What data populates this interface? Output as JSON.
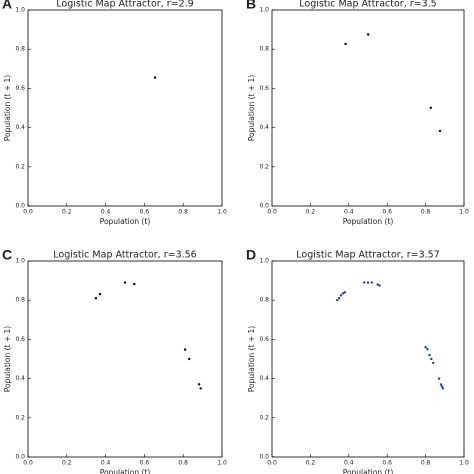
{
  "chart_data": [
    {
      "type": "scatter",
      "panel": "A",
      "title": "Logistic Map Attractor, r=2.9",
      "xlabel": "Population (t)",
      "ylabel": "Population (t + 1)",
      "x": [
        0.655
      ],
      "y": [
        0.655
      ],
      "color": "#000000",
      "xlim": [
        0,
        1
      ],
      "ylim": [
        0,
        1
      ],
      "xticks": [
        {
          "value": 0,
          "label": "0.0"
        },
        {
          "value": 0.2,
          "label": "0.2"
        },
        {
          "value": 0.4,
          "label": "0.4"
        },
        {
          "value": 0.6,
          "label": "0.6"
        },
        {
          "value": 0.8,
          "label": "0.8"
        },
        {
          "value": 1,
          "label": "1.0"
        }
      ],
      "yticks": [
        {
          "value": 0,
          "label": "0.0"
        },
        {
          "value": 0.2,
          "label": "0.2"
        },
        {
          "value": 0.4,
          "label": "0.4"
        },
        {
          "value": 0.6,
          "label": "0.6"
        },
        {
          "value": 0.8,
          "label": "0.8"
        },
        {
          "value": 1,
          "label": "1.0"
        }
      ]
    },
    {
      "type": "scatter",
      "panel": "B",
      "title": "Logistic Map Attractor, r=3.5",
      "xlabel": "Population (t)",
      "ylabel": "Population (t + 1)",
      "x": [
        0.383,
        0.827,
        0.501,
        0.875
      ],
      "y": [
        0.827,
        0.501,
        0.875,
        0.383
      ],
      "color": "#000000",
      "xlim": [
        0,
        1
      ],
      "ylim": [
        0,
        1
      ],
      "xticks": [
        {
          "value": 0,
          "label": "0.0"
        },
        {
          "value": 0.2,
          "label": "0.2"
        },
        {
          "value": 0.4,
          "label": "0.4"
        },
        {
          "value": 0.6,
          "label": "0.6"
        },
        {
          "value": 0.8,
          "label": "0.8"
        },
        {
          "value": 1,
          "label": "1.0"
        }
      ],
      "yticks": [
        {
          "value": 0,
          "label": "0.0"
        },
        {
          "value": 0.2,
          "label": "0.2"
        },
        {
          "value": 0.4,
          "label": "0.4"
        },
        {
          "value": 0.6,
          "label": "0.6"
        },
        {
          "value": 0.8,
          "label": "0.8"
        },
        {
          "value": 1,
          "label": "1.0"
        }
      ]
    },
    {
      "type": "scatter",
      "panel": "C",
      "title": "Logistic Map Attractor, r=3.56",
      "xlabel": "Population (t)",
      "ylabel": "Population (t + 1)",
      "x": [
        0.35,
        0.81,
        0.548,
        0.882,
        0.371,
        0.831,
        0.5,
        0.89
      ],
      "y": [
        0.81,
        0.548,
        0.882,
        0.371,
        0.831,
        0.5,
        0.89,
        0.35
      ],
      "color": "#000000",
      "xlim": [
        0,
        1
      ],
      "ylim": [
        0,
        1
      ],
      "xticks": [
        {
          "value": 0,
          "label": "0.0"
        },
        {
          "value": 0.2,
          "label": "0.2"
        },
        {
          "value": 0.4,
          "label": "0.4"
        },
        {
          "value": 0.6,
          "label": "0.6"
        },
        {
          "value": 0.8,
          "label": "0.8"
        },
        {
          "value": 1,
          "label": "1.0"
        }
      ],
      "yticks": [
        {
          "value": 0,
          "label": "0.0"
        },
        {
          "value": 0.2,
          "label": "0.2"
        },
        {
          "value": 0.4,
          "label": "0.4"
        },
        {
          "value": 0.6,
          "label": "0.6"
        },
        {
          "value": 0.8,
          "label": "0.8"
        },
        {
          "value": 1,
          "label": "1.0"
        }
      ]
    },
    {
      "type": "scatter",
      "panel": "D",
      "title": "Logistic Map Attractor, r=3.57",
      "xlabel": "Population (t)",
      "ylabel": "Population (t + 1)",
      "x": [
        0.34,
        0.35,
        0.36,
        0.37,
        0.38,
        0.48,
        0.5,
        0.52,
        0.55,
        0.56,
        0.8,
        0.81,
        0.82,
        0.83,
        0.84,
        0.87,
        0.88,
        0.885,
        0.89
      ],
      "y": [
        0.8,
        0.81,
        0.825,
        0.835,
        0.84,
        0.89,
        0.89,
        0.89,
        0.88,
        0.875,
        0.56,
        0.55,
        0.52,
        0.5,
        0.48,
        0.4,
        0.37,
        0.36,
        0.35
      ],
      "color": "#1f3f9f",
      "xlim": [
        0,
        1
      ],
      "ylim": [
        0,
        1
      ],
      "xticks": [
        {
          "value": 0,
          "label": "0.0"
        },
        {
          "value": 0.2,
          "label": "0.2"
        },
        {
          "value": 0.4,
          "label": "0.4"
        },
        {
          "value": 0.6,
          "label": "0.6"
        },
        {
          "value": 0.8,
          "label": "0.8"
        },
        {
          "value": 1,
          "label": "1.0"
        }
      ],
      "yticks": [
        {
          "value": 0,
          "label": "0.0"
        },
        {
          "value": 0.2,
          "label": "0.2"
        },
        {
          "value": 0.4,
          "label": "0.4"
        },
        {
          "value": 0.6,
          "label": "0.6"
        },
        {
          "value": 0.8,
          "label": "0.8"
        },
        {
          "value": 1,
          "label": "1.0"
        }
      ]
    }
  ]
}
